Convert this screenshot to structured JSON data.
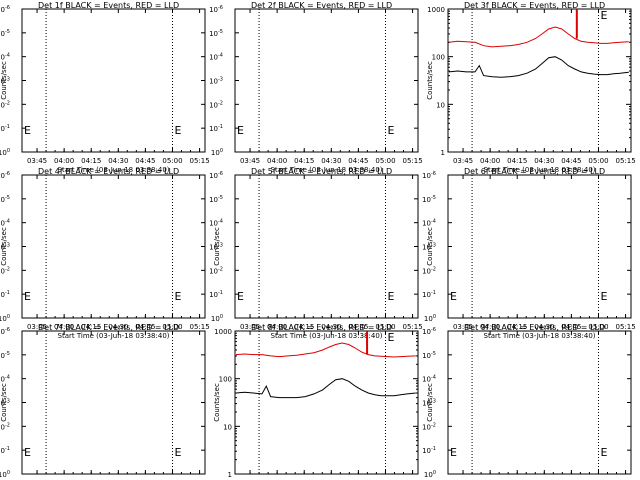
{
  "figure": {
    "start_time_label": "Start Time (03-Jun-18 03:38:40)",
    "ylabel": "Counts/sec"
  },
  "axis": {
    "x_ticks": [
      "03:45",
      "04:00",
      "04:15",
      "04:30",
      "04:45",
      "05:00",
      "05:15"
    ],
    "x_range_hours": [
      3.6111,
      5.3
    ],
    "dotted_lines_hours": [
      3.8333,
      5.0
    ],
    "y_ticks_empty": [
      "10^0",
      "10^-1",
      "10^-2",
      "10^-3",
      "10^-4",
      "10^-5",
      "10^-6"
    ],
    "y_ticks_log": [
      "1000",
      "100",
      "10",
      "1"
    ],
    "y_range_log": [
      1,
      1000
    ]
  },
  "marker": "E",
  "colors": {
    "events": "#000000",
    "lld": "#dd0000"
  },
  "chart_data": [
    {
      "type": "line",
      "title": "Det 1f BLACK = Events, RED = LLD",
      "has_data": false,
      "ylabel": "Counts/sec",
      "xlabel": "Start Time (03-Jun-18 03:38:40)",
      "series": []
    },
    {
      "type": "line",
      "title": "Det 2f BLACK = Events, RED = LLD",
      "has_data": false,
      "ylabel": "",
      "xlabel": "Start Time (03-Jun-18 03:38:40)",
      "series": []
    },
    {
      "type": "line",
      "title": "Det 3f BLACK = Events, RED = LLD",
      "has_data": true,
      "ylabel": "Counts/sec",
      "xlabel": "Start Time (03-Jun-18 03:38:40)",
      "ylim": [
        1,
        1000
      ],
      "scale": "log",
      "series": [
        {
          "name": "LLD",
          "color": "#dd0000",
          "x": [
            3.62,
            3.7,
            3.78,
            3.86,
            3.94,
            4.02,
            4.1,
            4.18,
            4.26,
            4.34,
            4.42,
            4.48,
            4.54,
            4.6,
            4.66,
            4.72,
            4.78,
            4.84,
            4.9,
            4.96,
            5.02,
            5.08,
            5.14,
            5.2,
            5.28
          ],
          "y": [
            200,
            210,
            205,
            200,
            170,
            160,
            165,
            170,
            180,
            200,
            240,
            300,
            380,
            420,
            380,
            300,
            240,
            210,
            200,
            195,
            190,
            190,
            195,
            200,
            205
          ]
        },
        {
          "name": "Events",
          "color": "#000000",
          "x": [
            3.62,
            3.7,
            3.78,
            3.86,
            3.9,
            3.94,
            4.02,
            4.1,
            4.18,
            4.26,
            4.34,
            4.42,
            4.48,
            4.54,
            4.6,
            4.66,
            4.72,
            4.78,
            4.84,
            4.9,
            4.96,
            5.02,
            5.08,
            5.14,
            5.2,
            5.28
          ],
          "y": [
            48,
            50,
            48,
            48,
            65,
            40,
            38,
            37,
            38,
            40,
            45,
            55,
            72,
            95,
            100,
            85,
            65,
            55,
            48,
            45,
            43,
            42,
            42,
            44,
            45,
            47
          ]
        }
      ],
      "spike": {
        "series": "LLD",
        "x": 4.8,
        "y": 1000
      }
    },
    {
      "type": "line",
      "title": "Det 4f BLACK = Events, RED = LLD",
      "has_data": false,
      "ylabel": "Counts/sec",
      "xlabel": "Start Time (03-Jun-18 03:38:40)",
      "series": []
    },
    {
      "type": "line",
      "title": "Det 5f BLACK = Events, RED = LLD",
      "has_data": false,
      "ylabel": "Counts/sec",
      "xlabel": "Start Time (03-Jun-18 03:38:40)",
      "series": []
    },
    {
      "type": "line",
      "title": "Det 6f BLACK = Events, RED = LLD",
      "has_data": false,
      "ylabel": "Counts/sec",
      "xlabel": "Start Time (03-Jun-18 03:38:40)",
      "series": []
    },
    {
      "type": "line",
      "title": "Det 7f BLACK = Events, RED = LLD",
      "has_data": false,
      "ylabel": "Counts/sec",
      "xlabel": "Start Time (03-Jun-18 03:38:40)",
      "series": []
    },
    {
      "type": "line",
      "title": "Det 8f BLACK = Events, RED = LLD",
      "has_data": true,
      "ylabel": "Counts/sec",
      "xlabel": "Start Time (03-Jun-18 03:38:40)",
      "ylim": [
        1,
        1000
      ],
      "scale": "log",
      "series": [
        {
          "name": "LLD",
          "color": "#dd0000",
          "x": [
            3.62,
            3.7,
            3.78,
            3.86,
            3.94,
            4.02,
            4.1,
            4.18,
            4.26,
            4.34,
            4.42,
            4.48,
            4.54,
            4.6,
            4.66,
            4.72,
            4.78,
            4.84,
            4.9,
            4.96,
            5.02,
            5.08,
            5.14,
            5.2,
            5.28
          ],
          "y": [
            320,
            330,
            320,
            320,
            300,
            290,
            300,
            310,
            330,
            350,
            400,
            460,
            520,
            560,
            520,
            440,
            360,
            320,
            300,
            295,
            290,
            285,
            290,
            295,
            300
          ]
        },
        {
          "name": "Events",
          "color": "#000000",
          "x": [
            3.62,
            3.7,
            3.78,
            3.86,
            3.9,
            3.94,
            4.02,
            4.1,
            4.18,
            4.26,
            4.34,
            4.42,
            4.48,
            4.54,
            4.6,
            4.66,
            4.72,
            4.78,
            4.84,
            4.9,
            4.96,
            5.02,
            5.08,
            5.14,
            5.2,
            5.28
          ],
          "y": [
            50,
            52,
            50,
            48,
            70,
            42,
            40,
            40,
            40,
            42,
            48,
            58,
            75,
            95,
            100,
            88,
            70,
            58,
            50,
            46,
            44,
            44,
            44,
            46,
            48,
            50
          ]
        }
      ],
      "spike": {
        "series": "LLD",
        "x": 4.83,
        "y": 1000
      }
    },
    {
      "type": "line",
      "title": "Det 9f BLACK = Events, RED = LLD",
      "has_data": false,
      "ylabel": "Counts/sec",
      "xlabel": "Start Time (03-Jun-18 03:38:40)",
      "series": []
    }
  ]
}
